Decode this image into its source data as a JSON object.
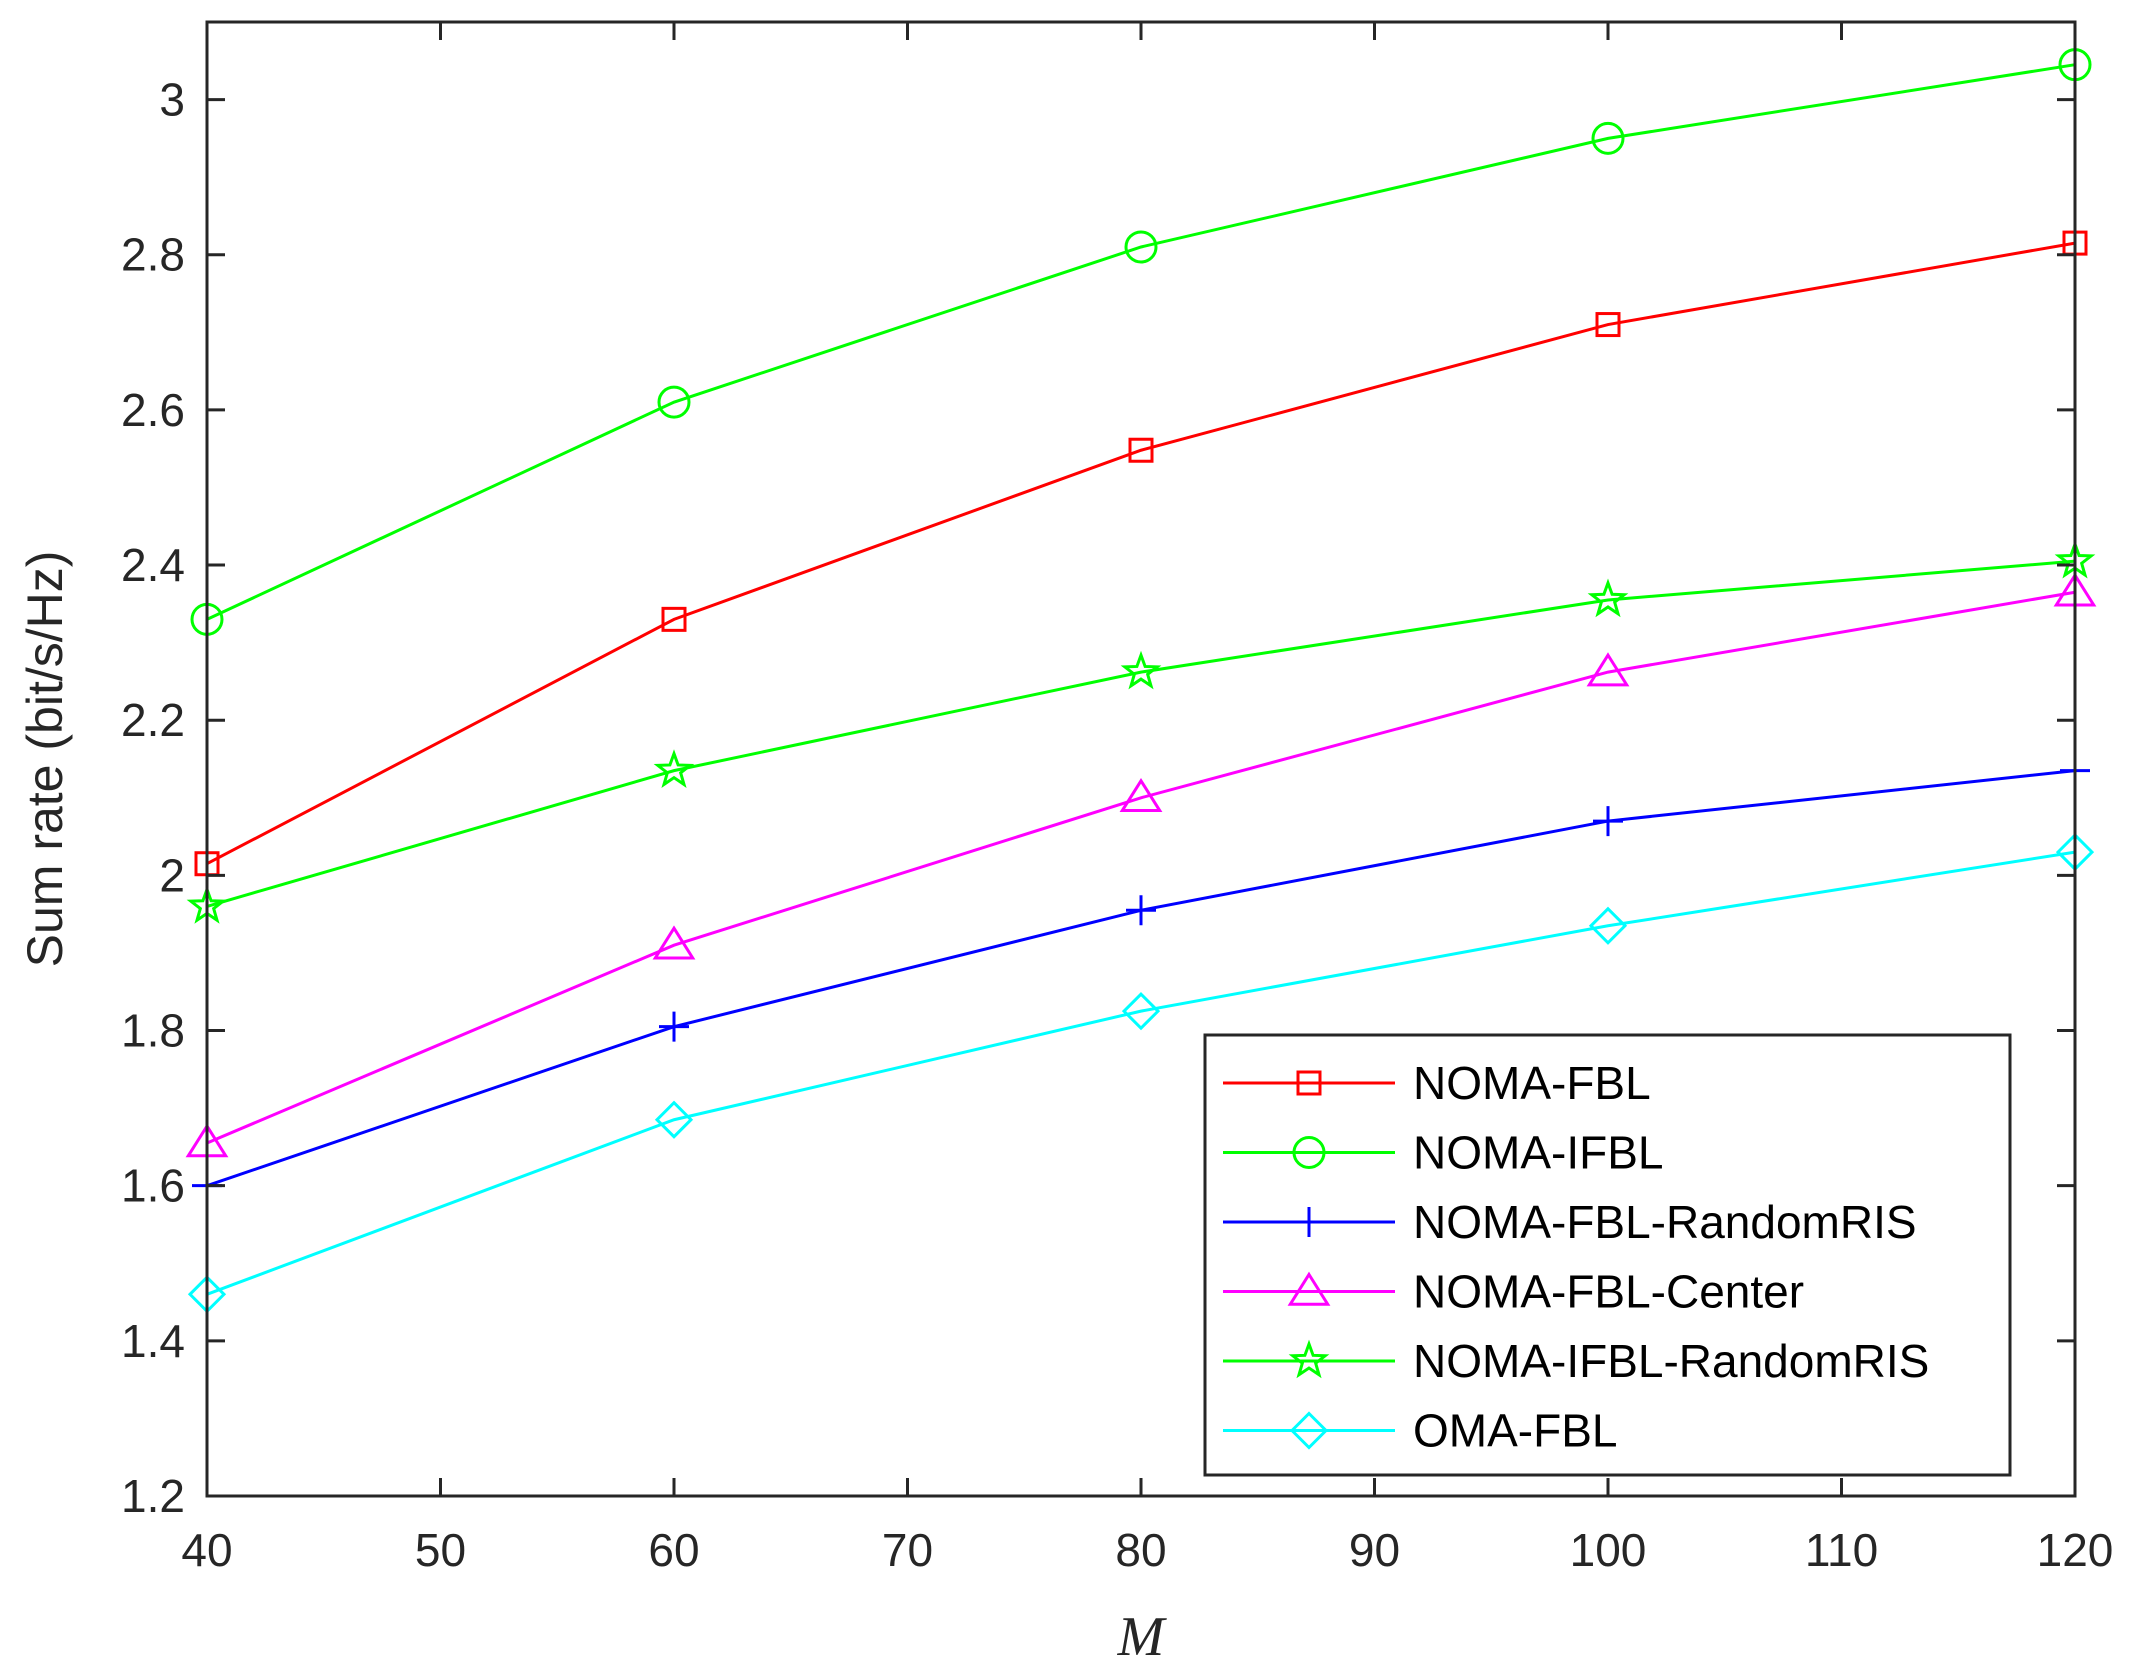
{
  "chart_data": {
    "type": "line",
    "title": "",
    "xlabel": "M",
    "ylabel": "Sum rate (bit/s/Hz)",
    "xlim": [
      40,
      120
    ],
    "ylim": [
      1.2,
      3.1
    ],
    "xticks": [
      40,
      50,
      60,
      70,
      80,
      90,
      100,
      110,
      120
    ],
    "xtick_labels": [
      "40",
      "50",
      "60",
      "70",
      "80",
      "90",
      "100",
      "110",
      "120"
    ],
    "yticks": [
      1.2,
      1.4,
      1.6,
      1.8,
      2.0,
      2.2,
      2.4,
      2.6,
      2.8,
      3.0
    ],
    "ytick_labels": [
      "1.2",
      "1.4",
      "1.6",
      "1.8",
      "2",
      "2.2",
      "2.4",
      "2.6",
      "2.8",
      "3"
    ],
    "grid": false,
    "legend_position": "bottom-right",
    "x": [
      40,
      60,
      80,
      100,
      120
    ],
    "series": [
      {
        "name": "NOMA-FBL",
        "color": "#ff0000",
        "marker": "square",
        "values": [
          2.015,
          2.33,
          2.548,
          2.71,
          2.815
        ]
      },
      {
        "name": "NOMA-IFBL",
        "color": "#00ff00",
        "marker": "circle",
        "values": [
          2.33,
          2.61,
          2.81,
          2.95,
          3.045
        ]
      },
      {
        "name": "NOMA-FBL-RandomRIS",
        "color": "#0000ff",
        "marker": "plus",
        "values": [
          1.6,
          1.805,
          1.955,
          2.07,
          2.135
        ]
      },
      {
        "name": "NOMA-FBL-Center",
        "color": "#ff00ff",
        "marker": "triangle",
        "values": [
          1.655,
          1.91,
          2.1,
          2.262,
          2.365
        ]
      },
      {
        "name": "NOMA-IFBL-RandomRIS",
        "color": "#00ff00",
        "marker": "star",
        "values": [
          1.96,
          2.135,
          2.262,
          2.355,
          2.405
        ]
      },
      {
        "name": "OMA-FBL",
        "color": "#00ffff",
        "marker": "diamond",
        "values": [
          1.46,
          1.685,
          1.825,
          1.935,
          2.03
        ]
      }
    ]
  }
}
